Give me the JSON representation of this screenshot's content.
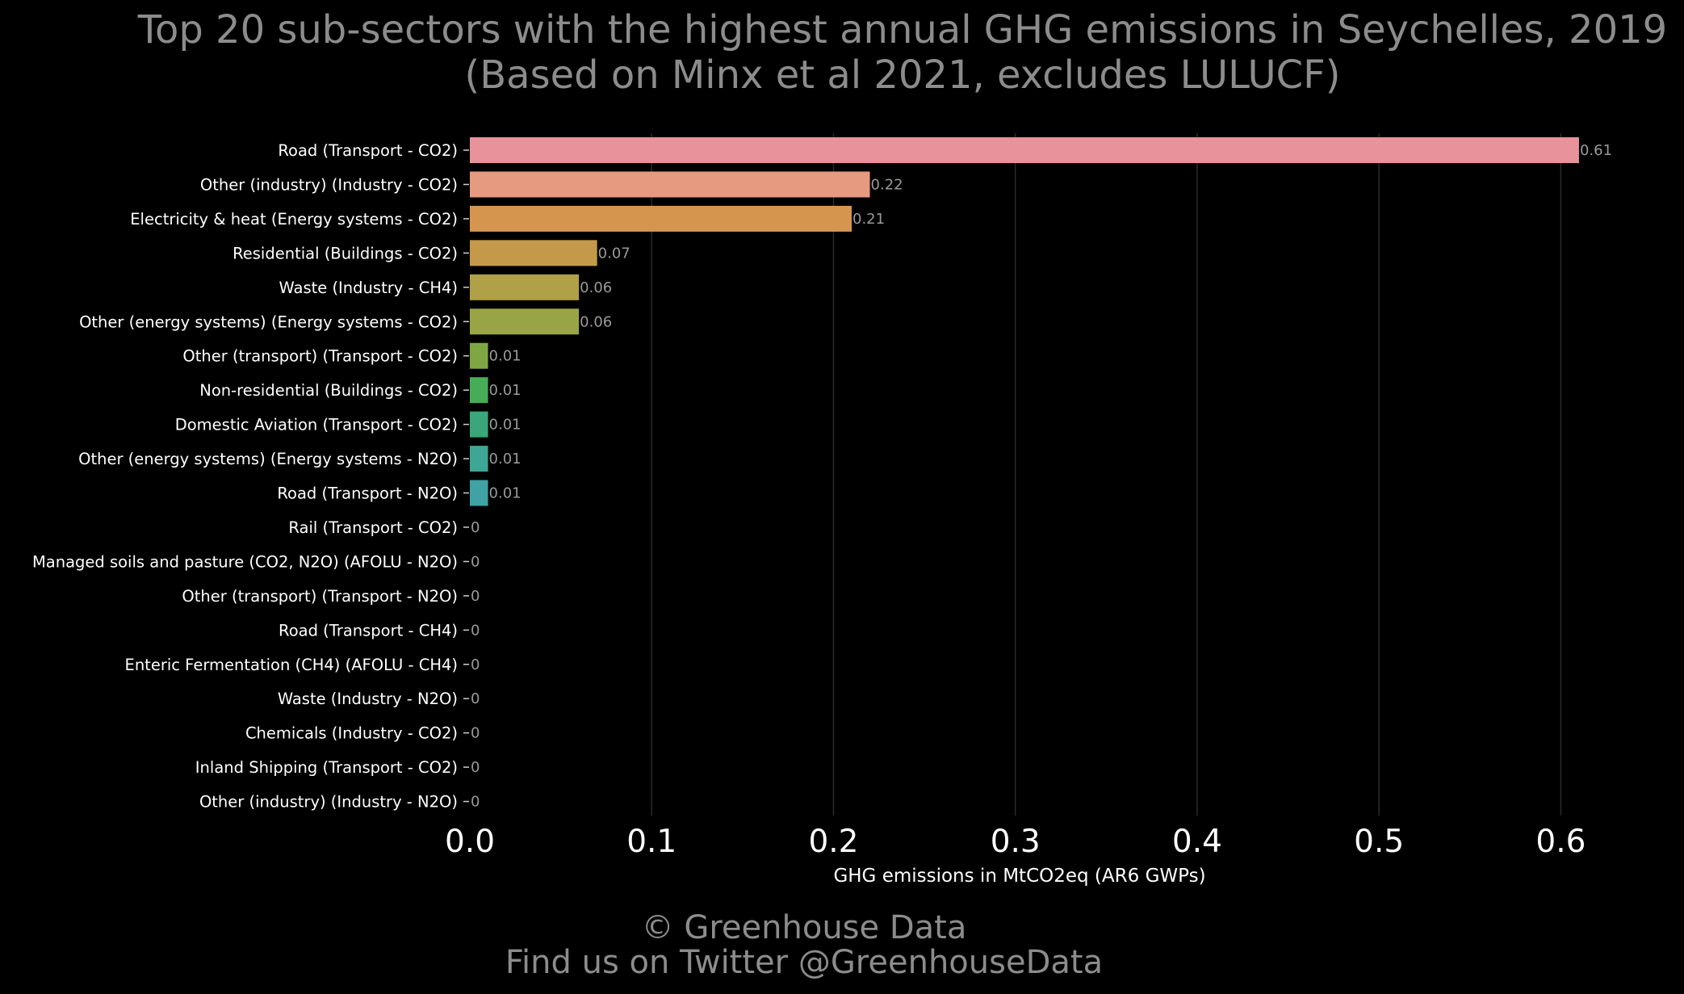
{
  "colors": {
    "background": "#000000",
    "title_text": "#8c8c8c",
    "axis_text": "#ffffff",
    "data_label_text": "#9a9a9a",
    "gridline": "#2a2a2a"
  },
  "chart_data": {
    "type": "bar",
    "orientation": "horizontal",
    "title": "Top 20 sub-sectors with the highest annual GHG emissions in Seychelles, 2019",
    "subtitle": "(Based on Minx et al 2021, excludes LULUCF)",
    "xlabel": "GHG emissions in MtCO2eq (AR6 GWPs)",
    "ylabel": "",
    "xlim": [
      0,
      0.63
    ],
    "xticks": [
      0.0,
      0.1,
      0.2,
      0.3,
      0.4,
      0.5,
      0.6
    ],
    "xtick_labels": [
      "0.0",
      "0.1",
      "0.2",
      "0.3",
      "0.4",
      "0.5",
      "0.6"
    ],
    "grid": "vertical",
    "legend": "none",
    "categories": [
      "Road (Transport - CO2)",
      "Other (industry) (Industry - CO2)",
      "Electricity & heat (Energy systems - CO2)",
      "Residential (Buildings - CO2)",
      "Waste (Industry - CH4)",
      "Other (energy systems) (Energy systems - CO2)",
      "Other (transport) (Transport - CO2)",
      "Non-residential (Buildings - CO2)",
      "Domestic Aviation (Transport - CO2)",
      "Other (energy systems) (Energy systems - N2O)",
      "Road (Transport - N2O)",
      "Rail  (Transport - CO2)",
      "Managed soils and pasture (CO2, N2O) (AFOLU - N2O)",
      "Other (transport) (Transport - N2O)",
      "Road (Transport - CH4)",
      "Enteric Fermentation (CH4) (AFOLU - CH4)",
      "Waste (Industry - N2O)",
      "Chemicals (Industry - CO2)",
      "Inland Shipping (Transport - CO2)",
      "Other (industry) (Industry - N2O)"
    ],
    "values": [
      0.61,
      0.22,
      0.21,
      0.07,
      0.06,
      0.06,
      0.01,
      0.01,
      0.01,
      0.01,
      0.01,
      0,
      0,
      0,
      0,
      0,
      0,
      0,
      0,
      0
    ],
    "value_labels": [
      "0.61",
      "0.22",
      "0.21",
      "0.07",
      "0.06",
      "0.06",
      "0.01",
      "0.01",
      "0.01",
      "0.01",
      "0.01",
      "0",
      "0",
      "0",
      "0",
      "0",
      "0",
      "0",
      "0",
      "0"
    ],
    "bar_colors": [
      "#e8929c",
      "#e69a80",
      "#d6954e",
      "#c49a4a",
      "#b0a047",
      "#99a446",
      "#7fa645",
      "#47ac57",
      "#3aa67a",
      "#3ea694",
      "#3fa2a4",
      "#3f9eae",
      "#449ab8",
      "#4b95c2",
      "#5a8fcc",
      "#6d88d2",
      "#8381d4",
      "#9a7bd2",
      "#b077cc",
      "#c476c2"
    ]
  },
  "footer": {
    "copyright": "© Greenhouse Data",
    "twitter": "Find us on Twitter @GreenhouseData"
  }
}
